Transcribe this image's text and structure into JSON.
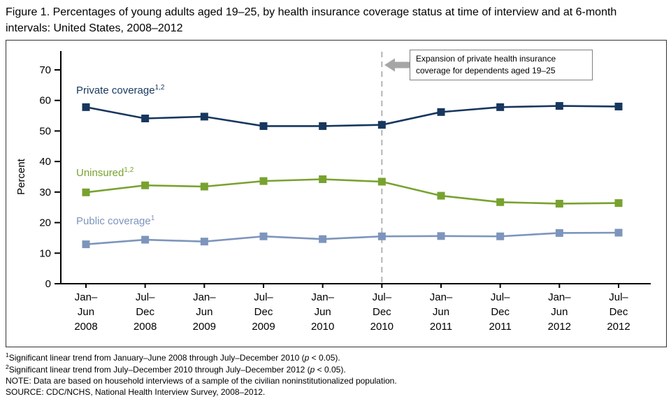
{
  "title": "Figure 1. Percentages of young adults aged 19–25, by health insurance coverage status at time of interview and at 6-month intervals: United States, 2008–2012",
  "chart_data": {
    "type": "line",
    "title": "Figure 1. Percentages of young adults aged 19–25, by health insurance coverage status at time of interview and at 6-month intervals: United States, 2008–2012",
    "ylabel": "Percent",
    "ylim": [
      0,
      70
    ],
    "ytick_step": 10,
    "grid": false,
    "legend_position": "inline-labels",
    "x_categories": [
      [
        "Jan–",
        "Jun",
        "2008"
      ],
      [
        "Jul–",
        "Dec",
        "2008"
      ],
      [
        "Jan–",
        "Jun",
        "2009"
      ],
      [
        "Jul–",
        "Dec",
        "2009"
      ],
      [
        "Jan–",
        "Jun",
        "2010"
      ],
      [
        "Jul–",
        "Dec",
        "2010"
      ],
      [
        "Jan–",
        "Jun",
        "2011"
      ],
      [
        "Jul–",
        "Dec",
        "2011"
      ],
      [
        "Jan–",
        "Jun",
        "2012"
      ],
      [
        "Jul–",
        "Dec",
        "2012"
      ]
    ],
    "series": [
      {
        "name": "Private coverage",
        "sup": "1,2",
        "color": "#17375e",
        "values": [
          57.8,
          54.1,
          54.7,
          51.6,
          51.6,
          52.0,
          56.2,
          57.8,
          58.2,
          58.0
        ]
      },
      {
        "name": "Uninsured",
        "sup": "1,2",
        "color": "#78a22f",
        "values": [
          29.9,
          32.2,
          31.8,
          33.6,
          34.2,
          33.4,
          28.8,
          26.7,
          26.2,
          26.4
        ]
      },
      {
        "name": "Public coverage",
        "sup": "1",
        "color": "#7d95bc",
        "values": [
          12.9,
          14.4,
          13.8,
          15.5,
          14.6,
          15.5,
          15.6,
          15.5,
          16.6,
          16.7
        ]
      }
    ],
    "annotation": {
      "line_at_index": 5,
      "text": "Expansion of private health insurance coverage for dependents aged 19–25",
      "line_color": "#b3b3b3",
      "arrow_color": "#a6a6a6"
    }
  },
  "footnotes": [
    {
      "segments": [
        {
          "t": "1",
          "s": "sup"
        },
        {
          "t": "Significant linear trend from January–June 2008 through July–December 2010 (",
          "s": ""
        },
        {
          "t": "p",
          "s": "i"
        },
        {
          "t": " < 0.05).",
          "s": ""
        }
      ]
    },
    {
      "segments": [
        {
          "t": "2",
          "s": "sup"
        },
        {
          "t": "Significant linear trend from July–December 2010 through July–December 2012 (",
          "s": ""
        },
        {
          "t": "p",
          "s": "i"
        },
        {
          "t": " < 0.05).",
          "s": ""
        }
      ]
    },
    {
      "segments": [
        {
          "t": "NOTE: Data are based on household interviews of a sample of the civilian noninstitutionalized population.",
          "s": ""
        }
      ]
    },
    {
      "segments": [
        {
          "t": "SOURCE: CDC/NCHS, National Health Interview Survey, 2008–2012.",
          "s": ""
        }
      ]
    }
  ]
}
